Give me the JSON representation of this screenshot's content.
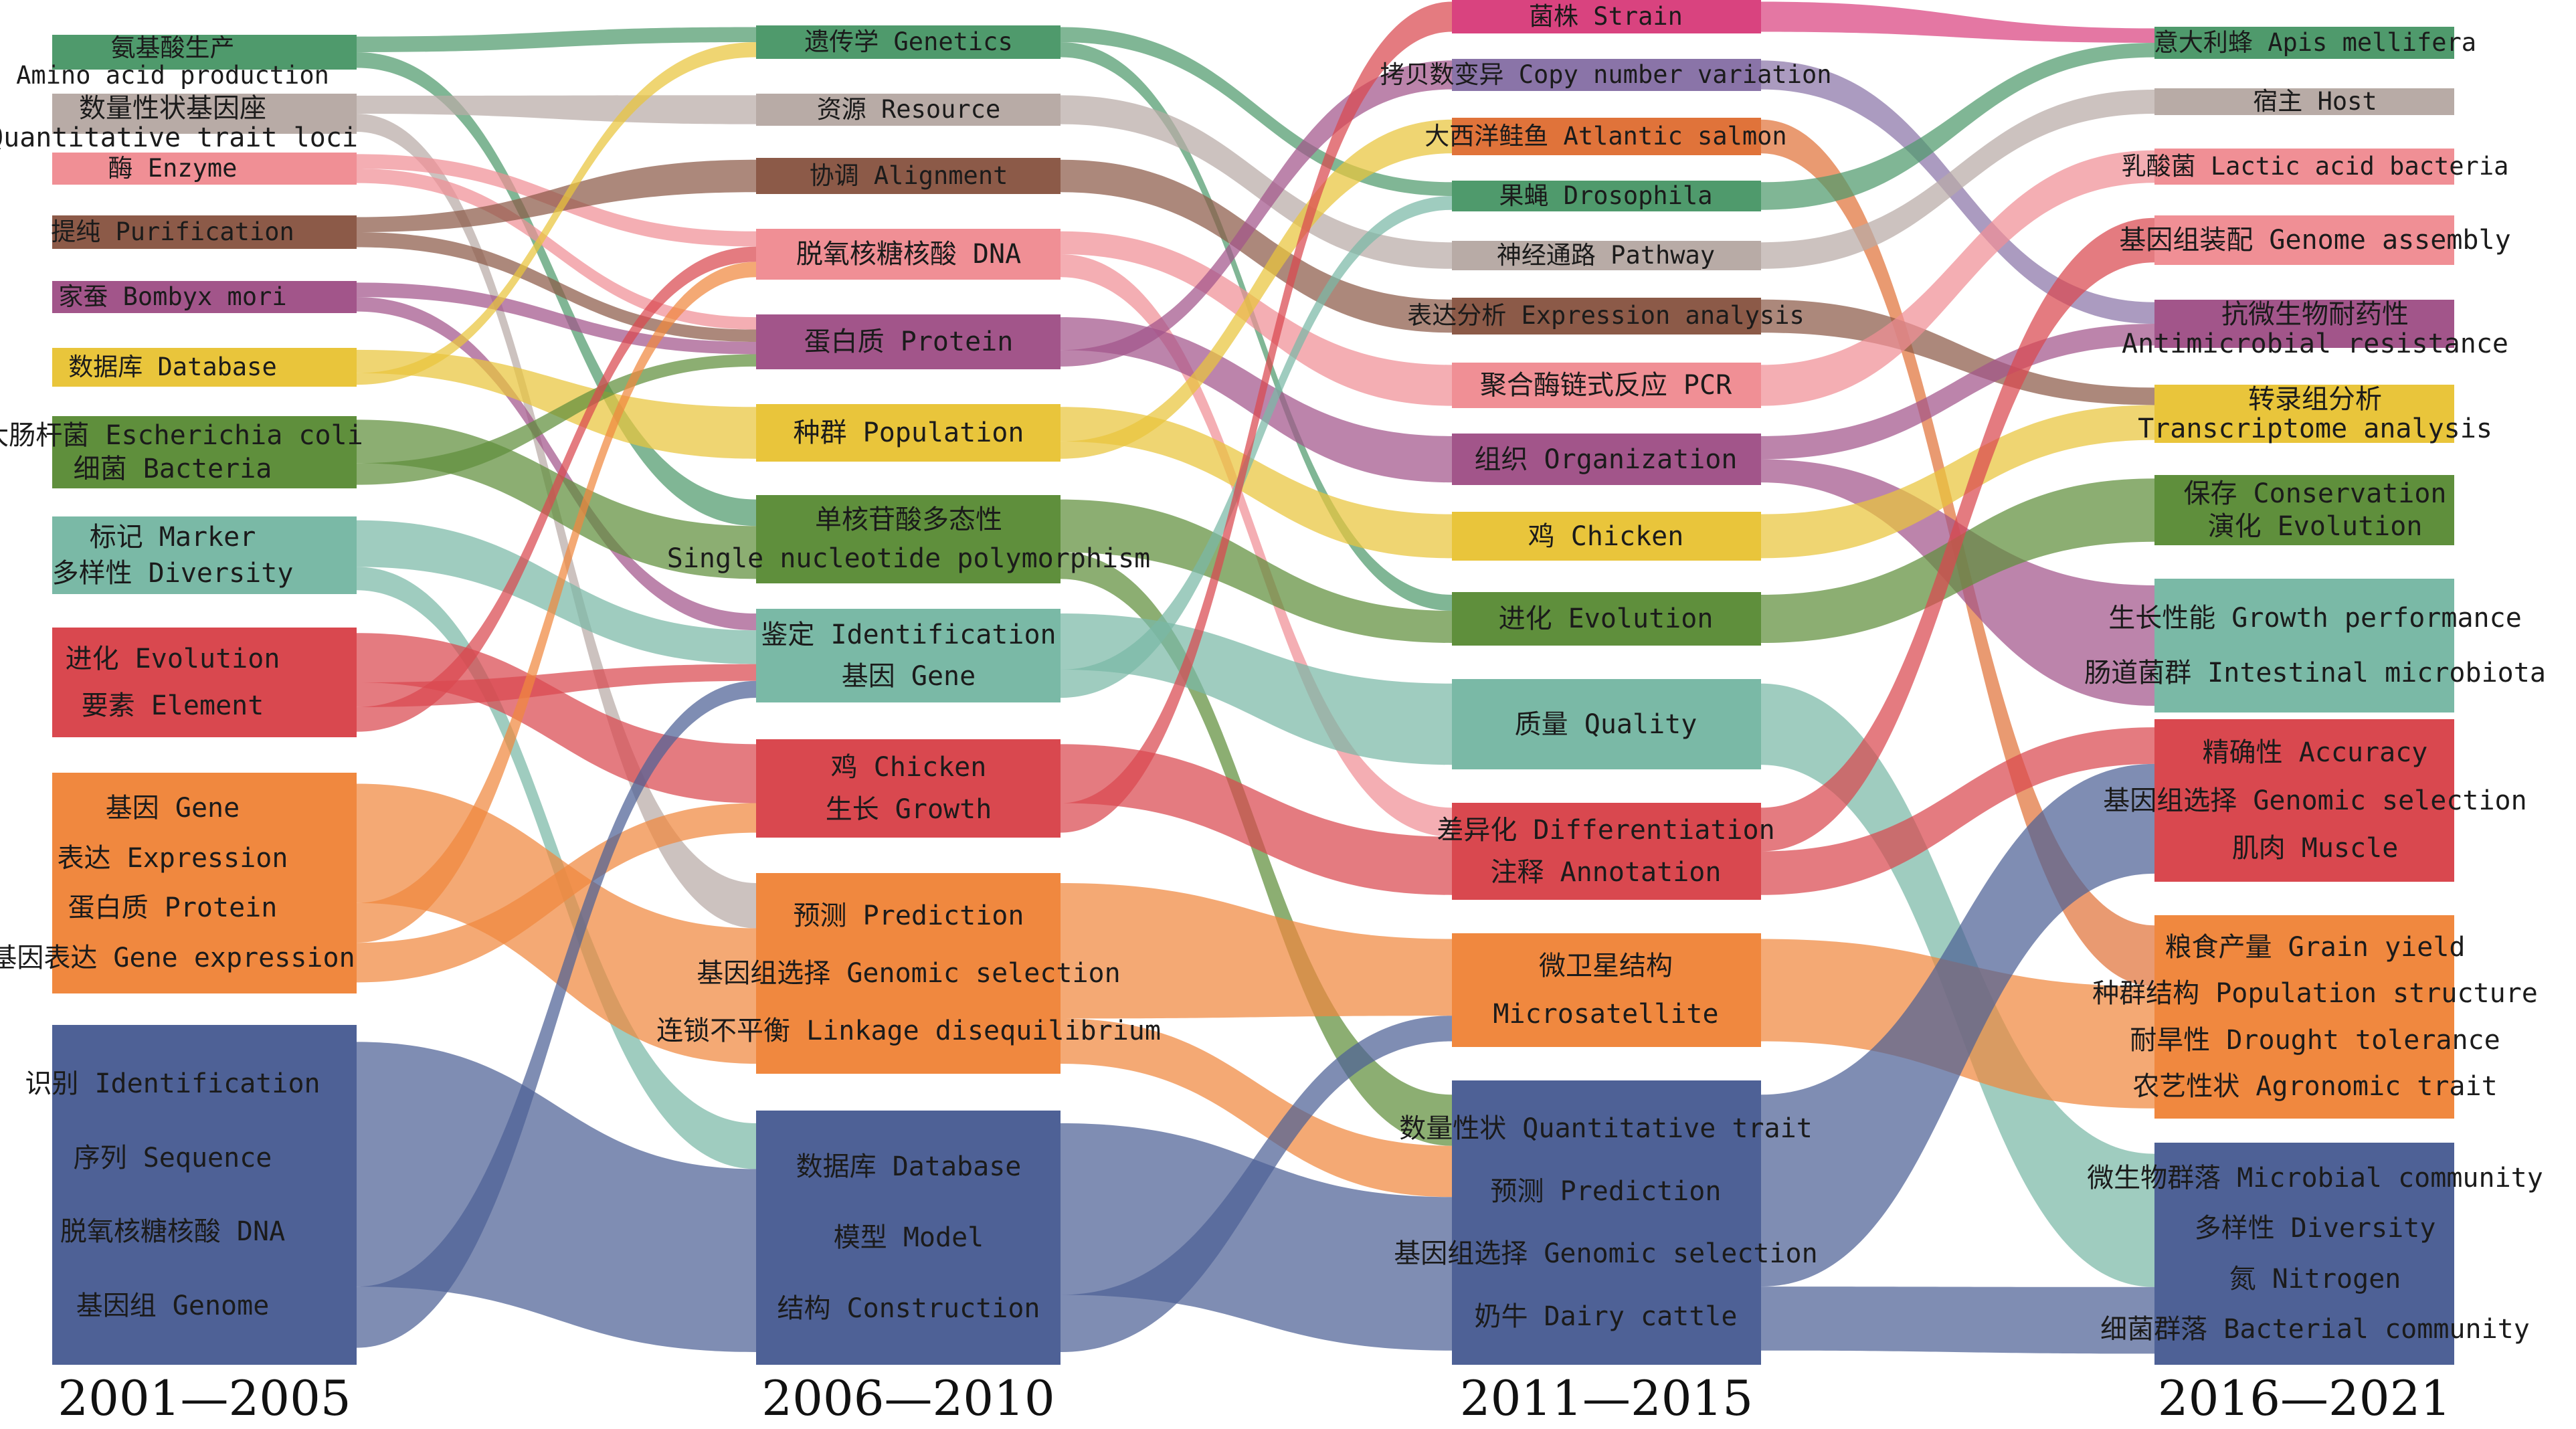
{
  "periods": [
    {
      "label": "2001—2005",
      "nodes": [
        {
          "color": "#4f9a6c",
          "labels": [
            "氨基酸生产",
            "Amino acid production"
          ]
        },
        {
          "color": "#b8aba6",
          "labels": [
            "数量性状基因座",
            "Quantitative trait loci"
          ]
        },
        {
          "color": "#f08f95",
          "labels": [
            "酶  Enzyme"
          ]
        },
        {
          "color": "#8c5a48",
          "labels": [
            "提纯  Purification"
          ]
        },
        {
          "color": "#a2558a",
          "labels": [
            "家蚕  Bombyx mori"
          ]
        },
        {
          "color": "#e9c53b",
          "labels": [
            "数据库  Database"
          ]
        },
        {
          "color": "#5f8f3c",
          "labels": [
            "大肠杆菌  Escherichia coli",
            "细菌  Bacteria"
          ]
        },
        {
          "color": "#7ab9a6",
          "labels": [
            "标记  Marker",
            "多样性  Diversity"
          ]
        },
        {
          "color": "#d9484f",
          "labels": [
            "进化  Evolution",
            "要素  Element"
          ]
        },
        {
          "color": "#f0883f",
          "labels": [
            "基因  Gene",
            "表达  Expression",
            "蛋白质  Protein",
            "基因表达  Gene expression"
          ]
        },
        {
          "color": "#4e6196",
          "labels": [
            "识别  Identification",
            "序列  Sequence",
            "脱氧核糖核酸  DNA",
            "基因组  Genome"
          ]
        }
      ]
    },
    {
      "label": "2006—2010",
      "nodes": [
        {
          "color": "#4f9a6c",
          "labels": [
            "遗传学  Genetics"
          ]
        },
        {
          "color": "#b8aba6",
          "labels": [
            "资源  Resource"
          ]
        },
        {
          "color": "#8c5a48",
          "labels": [
            "协调  Alignment"
          ]
        },
        {
          "color": "#f08f95",
          "labels": [
            "脱氧核糖核酸  DNA"
          ]
        },
        {
          "color": "#a2558a",
          "labels": [
            "蛋白质  Protein"
          ]
        },
        {
          "color": "#e9c53b",
          "labels": [
            "种群  Population"
          ]
        },
        {
          "color": "#5f8f3c",
          "labels": [
            "单核苷酸多态性",
            "Single nucleotide polymorphism"
          ]
        },
        {
          "color": "#7ab9a6",
          "labels": [
            "鉴定  Identification",
            "基因  Gene"
          ]
        },
        {
          "color": "#d9484f",
          "labels": [
            "鸡  Chicken",
            "生长  Growth"
          ]
        },
        {
          "color": "#f0883f",
          "labels": [
            "预测  Prediction",
            "基因组选择  Genomic selection",
            "连锁不平衡  Linkage disequilibrium"
          ]
        },
        {
          "color": "#4e6196",
          "labels": [
            "数据库  Database",
            "模型  Model",
            "结构  Construction"
          ]
        }
      ]
    },
    {
      "label": "2011—2015",
      "nodes": [
        {
          "color": "#d9437f",
          "labels": [
            "菌株  Strain"
          ]
        },
        {
          "color": "#8a74a8",
          "labels": [
            "拷贝数变异  Copy number variation"
          ]
        },
        {
          "color": "#e0733a",
          "labels": [
            "大西洋鲑鱼  Atlantic salmon"
          ]
        },
        {
          "color": "#4f9a6c",
          "labels": [
            "果蝇  Drosophila"
          ]
        },
        {
          "color": "#b8aba6",
          "labels": [
            "神经通路  Pathway"
          ]
        },
        {
          "color": "#8c5a48",
          "labels": [
            "表达分析  Expression analysis"
          ]
        },
        {
          "color": "#f08f95",
          "labels": [
            "聚合酶链式反应  PCR"
          ]
        },
        {
          "color": "#a2558a",
          "labels": [
            "组织  Organization"
          ]
        },
        {
          "color": "#e9c53b",
          "labels": [
            "鸡  Chicken"
          ]
        },
        {
          "color": "#5f8f3c",
          "labels": [
            "进化  Evolution"
          ]
        },
        {
          "color": "#7ab9a6",
          "labels": [
            "质量  Quality"
          ]
        },
        {
          "color": "#d9484f",
          "labels": [
            "差异化  Differentiation",
            "注释  Annotation"
          ]
        },
        {
          "color": "#f0883f",
          "labels": [
            "微卫星结构",
            "Microsatellite"
          ]
        },
        {
          "color": "#4e6196",
          "labels": [
            "数量性状  Quantitative trait",
            "预测  Prediction",
            "基因组选择  Genomic selection",
            "奶牛  Dairy cattle"
          ]
        }
      ]
    },
    {
      "label": "2016—2021",
      "nodes": [
        {
          "color": "#4f9a6c",
          "labels": [
            "意大利蜂  Apis mellifera"
          ]
        },
        {
          "color": "#b8aba6",
          "labels": [
            "宿主  Host"
          ]
        },
        {
          "color": "#f08f95",
          "labels": [
            "乳酸菌  Lactic acid bacteria"
          ]
        },
        {
          "color": "#f08f95",
          "labels": [
            "基因组装配  Genome assembly"
          ]
        },
        {
          "color": "#a2558a",
          "labels": [
            "抗微生物耐药性",
            "Antimicrobial resistance"
          ]
        },
        {
          "color": "#e9c53b",
          "labels": [
            "转录组分析",
            "Transcriptome analysis"
          ]
        },
        {
          "color": "#5f8f3c",
          "labels": [
            "保存  Conservation",
            "演化  Evolution"
          ]
        },
        {
          "color": "#7ab9a6",
          "labels": [
            "生长性能  Growth performance",
            "肠道菌群  Intestinal microbiota"
          ]
        },
        {
          "color": "#d9484f",
          "labels": [
            "精确性  Accuracy",
            "基因组选择  Genomic selection",
            "肌肉  Muscle"
          ]
        },
        {
          "color": "#f0883f",
          "labels": [
            "粮食产量  Grain yield",
            "种群结构  Population structure",
            "耐旱性  Drought tolerance",
            "农艺性状  Agronomic trait"
          ]
        },
        {
          "color": "#4e6196",
          "labels": [
            "微生物群落  Microbial community",
            "多样性  Diversity",
            "氮  Nitrogen",
            "细菌群落  Bacterial community"
          ]
        }
      ]
    }
  ],
  "flows": [
    {
      "from": [
        0,
        0
      ],
      "to": [
        1,
        0
      ],
      "value": 1
    },
    {
      "from": [
        0,
        0
      ],
      "to": [
        1,
        6
      ],
      "value": 1
    },
    {
      "from": [
        0,
        1
      ],
      "to": [
        1,
        1
      ],
      "value": 1
    },
    {
      "from": [
        0,
        1
      ],
      "to": [
        1,
        9
      ],
      "value": 1
    },
    {
      "from": [
        0,
        2
      ],
      "to": [
        1,
        3
      ],
      "value": 1
    },
    {
      "from": [
        0,
        2
      ],
      "to": [
        1,
        4
      ],
      "value": 1
    },
    {
      "from": [
        0,
        3
      ],
      "to": [
        1,
        2
      ],
      "value": 1
    },
    {
      "from": [
        0,
        3
      ],
      "to": [
        1,
        4
      ],
      "value": 1
    },
    {
      "from": [
        0,
        4
      ],
      "to": [
        1,
        4
      ],
      "value": 1
    },
    {
      "from": [
        0,
        4
      ],
      "to": [
        1,
        7
      ],
      "value": 1
    },
    {
      "from": [
        0,
        5
      ],
      "to": [
        1,
        5
      ],
      "value": 2
    },
    {
      "from": [
        0,
        5
      ],
      "to": [
        1,
        0
      ],
      "value": 1
    },
    {
      "from": [
        0,
        6
      ],
      "to": [
        1,
        6
      ],
      "value": 2
    },
    {
      "from": [
        0,
        6
      ],
      "to": [
        1,
        4
      ],
      "value": 1
    },
    {
      "from": [
        0,
        7
      ],
      "to": [
        1,
        7
      ],
      "value": 2
    },
    {
      "from": [
        0,
        7
      ],
      "to": [
        1,
        10
      ],
      "value": 1
    },
    {
      "from": [
        0,
        8
      ],
      "to": [
        1,
        8
      ],
      "value": 2
    },
    {
      "from": [
        0,
        8
      ],
      "to": [
        1,
        7
      ],
      "value": 1
    },
    {
      "from": [
        0,
        8
      ],
      "to": [
        1,
        3
      ],
      "value": 1
    },
    {
      "from": [
        0,
        9
      ],
      "to": [
        1,
        9
      ],
      "value": 3
    },
    {
      "from": [
        0,
        9
      ],
      "to": [
        1,
        3
      ],
      "value": 1
    },
    {
      "from": [
        0,
        9
      ],
      "to": [
        1,
        8
      ],
      "value": 1
    },
    {
      "from": [
        0,
        10
      ],
      "to": [
        1,
        10
      ],
      "value": 4
    },
    {
      "from": [
        0,
        10
      ],
      "to": [
        1,
        7
      ],
      "value": 1
    },
    {
      "from": [
        1,
        0
      ],
      "to": [
        2,
        3
      ],
      "value": 1
    },
    {
      "from": [
        1,
        0
      ],
      "to": [
        2,
        9
      ],
      "value": 1
    },
    {
      "from": [
        1,
        1
      ],
      "to": [
        2,
        4
      ],
      "value": 1
    },
    {
      "from": [
        1,
        2
      ],
      "to": [
        2,
        5
      ],
      "value": 1
    },
    {
      "from": [
        1,
        3
      ],
      "to": [
        2,
        6
      ],
      "value": 1
    },
    {
      "from": [
        1,
        3
      ],
      "to": [
        2,
        11
      ],
      "value": 1
    },
    {
      "from": [
        1,
        4
      ],
      "to": [
        2,
        7
      ],
      "value": 2
    },
    {
      "from": [
        1,
        4
      ],
      "to": [
        2,
        1
      ],
      "value": 1
    },
    {
      "from": [
        1,
        5
      ],
      "to": [
        2,
        8
      ],
      "value": 2
    },
    {
      "from": [
        1,
        5
      ],
      "to": [
        2,
        2
      ],
      "value": 1
    },
    {
      "from": [
        1,
        6
      ],
      "to": [
        2,
        9
      ],
      "value": 2
    },
    {
      "from": [
        1,
        6
      ],
      "to": [
        2,
        13
      ],
      "value": 1
    },
    {
      "from": [
        1,
        7
      ],
      "to": [
        2,
        10
      ],
      "value": 2
    },
    {
      "from": [
        1,
        7
      ],
      "to": [
        2,
        3
      ],
      "value": 1
    },
    {
      "from": [
        1,
        8
      ],
      "to": [
        2,
        11
      ],
      "value": 2
    },
    {
      "from": [
        1,
        8
      ],
      "to": [
        2,
        0
      ],
      "value": 1
    },
    {
      "from": [
        1,
        9
      ],
      "to": [
        2,
        12
      ],
      "value": 3
    },
    {
      "from": [
        1,
        9
      ],
      "to": [
        2,
        13
      ],
      "value": 1
    },
    {
      "from": [
        1,
        10
      ],
      "to": [
        2,
        13
      ],
      "value": 3
    },
    {
      "from": [
        1,
        10
      ],
      "to": [
        2,
        12
      ],
      "value": 1
    },
    {
      "from": [
        2,
        0
      ],
      "to": [
        3,
        0
      ],
      "value": 1
    },
    {
      "from": [
        2,
        1
      ],
      "to": [
        3,
        4
      ],
      "value": 1
    },
    {
      "from": [
        2,
        2
      ],
      "to": [
        3,
        9
      ],
      "value": 1
    },
    {
      "from": [
        2,
        3
      ],
      "to": [
        3,
        0
      ],
      "value": 1
    },
    {
      "from": [
        2,
        4
      ],
      "to": [
        3,
        1
      ],
      "value": 1
    },
    {
      "from": [
        2,
        5
      ],
      "to": [
        3,
        5
      ],
      "value": 1
    },
    {
      "from": [
        2,
        6
      ],
      "to": [
        3,
        2
      ],
      "value": 1
    },
    {
      "from": [
        2,
        7
      ],
      "to": [
        3,
        4
      ],
      "value": 1
    },
    {
      "from": [
        2,
        7
      ],
      "to": [
        3,
        7
      ],
      "value": 1
    },
    {
      "from": [
        2,
        8
      ],
      "to": [
        3,
        5
      ],
      "value": 2
    },
    {
      "from": [
        2,
        9
      ],
      "to": [
        3,
        6
      ],
      "value": 2
    },
    {
      "from": [
        2,
        10
      ],
      "to": [
        3,
        10
      ],
      "value": 2
    },
    {
      "from": [
        2,
        11
      ],
      "to": [
        3,
        3
      ],
      "value": 1
    },
    {
      "from": [
        2,
        11
      ],
      "to": [
        3,
        8
      ],
      "value": 1
    },
    {
      "from": [
        2,
        12
      ],
      "to": [
        3,
        9
      ],
      "value": 2
    },
    {
      "from": [
        2,
        13
      ],
      "to": [
        3,
        8
      ],
      "value": 3
    },
    {
      "from": [
        2,
        13
      ],
      "to": [
        3,
        10
      ],
      "value": 1
    }
  ]
}
